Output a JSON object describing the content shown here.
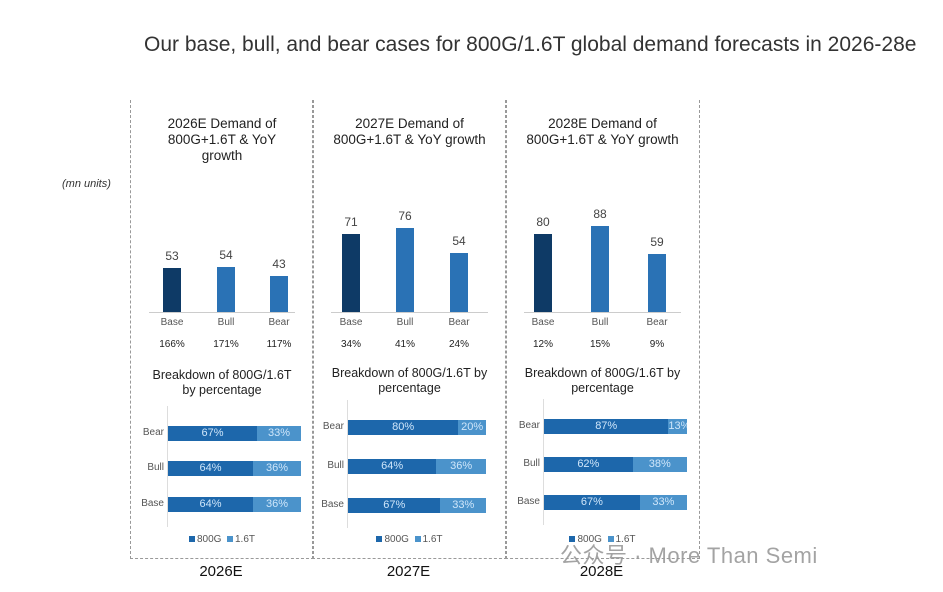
{
  "heading": "Our base, bull, and bear cases for 800G/1.6T global demand forecasts in 2026-28e",
  "units": "(mn units)",
  "watermark": "公众号 · More Than Semi",
  "colors": {
    "base": "#0e3a66",
    "bull_bear": "#2a72b5",
    "s800G": "#1d67ab",
    "s16T": "#4b93cb"
  },
  "legend": {
    "s800G": "800G",
    "s16T": "1.6T"
  },
  "chart_data": [
    {
      "type": "bar",
      "year": "2026E",
      "title": "2026E Demand of 800G+1.6T & YoY growth",
      "categories": [
        "Base",
        "Bull",
        "Bear"
      ],
      "values": [
        53,
        54,
        43
      ],
      "growth": [
        "166%",
        "171%",
        "117%"
      ],
      "breakdown": {
        "type": "stacked-bar-horizontal",
        "title": "Breakdown of 800G/1.6T by percentage",
        "rows": [
          {
            "label": "Bear",
            "s800G": 67,
            "s16T": 33
          },
          {
            "label": "Bull",
            "s800G": 64,
            "s16T": 36
          },
          {
            "label": "Base",
            "s800G": 64,
            "s16T": 36
          }
        ]
      }
    },
    {
      "type": "bar",
      "year": "2027E",
      "title": "2027E Demand of 800G+1.6T & YoY growth",
      "categories": [
        "Base",
        "Bull",
        "Bear"
      ],
      "values": [
        71,
        76,
        54
      ],
      "growth": [
        "34%",
        "41%",
        "24%"
      ],
      "breakdown": {
        "type": "stacked-bar-horizontal",
        "title": "Breakdown of 800G/1.6T by percentage",
        "rows": [
          {
            "label": "Bear",
            "s800G": 80,
            "s16T": 20
          },
          {
            "label": "Bull",
            "s800G": 64,
            "s16T": 36
          },
          {
            "label": "Base",
            "s800G": 67,
            "s16T": 33
          }
        ]
      }
    },
    {
      "type": "bar",
      "year": "2028E",
      "title": "2028E Demand of 800G+1.6T & YoY growth",
      "categories": [
        "Base",
        "Bull",
        "Bear"
      ],
      "values": [
        80,
        88,
        59
      ],
      "growth": [
        "12%",
        "15%",
        "9%"
      ],
      "breakdown": {
        "type": "stacked-bar-horizontal",
        "title": "Breakdown of 800G/1.6T by percentage",
        "rows": [
          {
            "label": "Bear",
            "s800G": 87,
            "s16T": 13
          },
          {
            "label": "Bull",
            "s800G": 62,
            "s16T": 38
          },
          {
            "label": "Base",
            "s800G": 67,
            "s16T": 33
          }
        ]
      }
    }
  ]
}
